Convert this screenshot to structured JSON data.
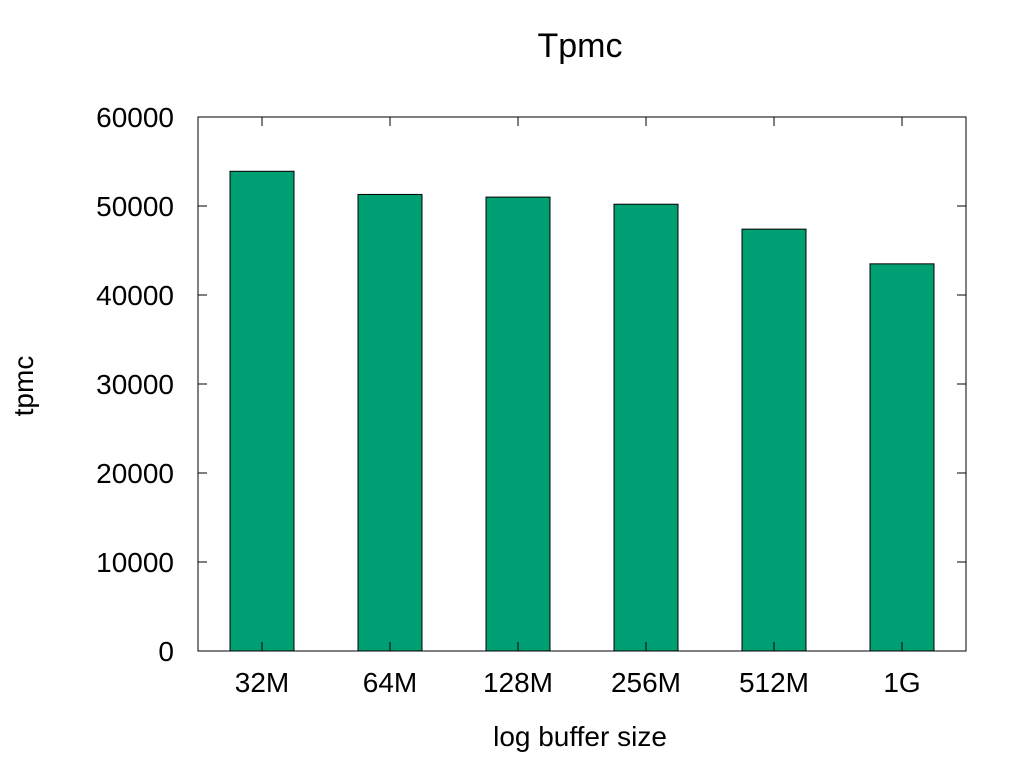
{
  "chart_data": {
    "type": "bar",
    "title": "Tpmc",
    "xlabel": "log buffer size",
    "ylabel": "tpmc",
    "categories": [
      "32M",
      "64M",
      "128M",
      "256M",
      "512M",
      "1G"
    ],
    "values": [
      53900,
      51300,
      51000,
      50200,
      47400,
      43500
    ],
    "ylim": [
      0,
      60000
    ],
    "yticks": [
      0,
      10000,
      20000,
      30000,
      40000,
      50000,
      60000
    ],
    "grid": false,
    "legend": "none",
    "colors": {
      "bar": "#009e73",
      "bar_stroke": "#000000",
      "axis": "#000000"
    }
  }
}
